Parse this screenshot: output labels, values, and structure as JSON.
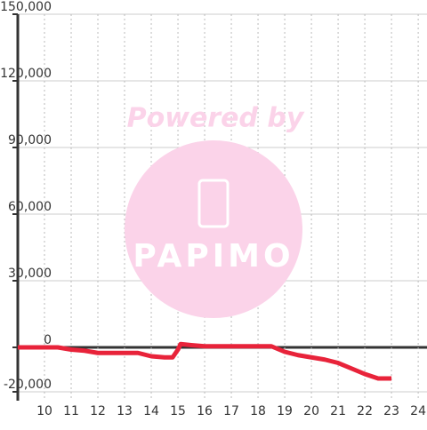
{
  "chart_data": {
    "type": "line",
    "watermark": {
      "caption": "Powered by",
      "brand": "PAPIMO"
    },
    "x": [
      9,
      10,
      10.5,
      11,
      11.5,
      12,
      13,
      13.5,
      14,
      14.5,
      14.8,
      15,
      15.1,
      15.5,
      16,
      17,
      18,
      18.5,
      19,
      19.5,
      20,
      20.5,
      21,
      21.5,
      22,
      22.5,
      23
    ],
    "series": [
      {
        "color": "#e8233a",
        "values": [
          0,
          0,
          0,
          -1000,
          -1500,
          -2500,
          -2500,
          -2500,
          -4000,
          -4500,
          -4500,
          -1000,
          1500,
          1000,
          500,
          500,
          500,
          500,
          -2000,
          -3500,
          -4500,
          -5500,
          -7000,
          -9500,
          -12000,
          -14000,
          -14000
        ]
      }
    ],
    "xlim": [
      9,
      24.33
    ],
    "ylim": [
      -24000,
      150000
    ],
    "xticks": [
      10,
      11,
      12,
      13,
      14,
      15,
      16,
      17,
      18,
      19,
      20,
      21,
      22,
      23,
      24
    ],
    "yticks": [
      {
        "value": -20000,
        "label": "-20,000"
      },
      0,
      {
        "value": 30000,
        "label": "30,000"
      },
      {
        "value": 60000,
        "label": "60,000"
      },
      {
        "value": 90000,
        "label": "90,000"
      },
      {
        "value": 120000,
        "label": "120,000"
      },
      {
        "value": 150000,
        "label": "150,000"
      }
    ],
    "grid": true
  }
}
